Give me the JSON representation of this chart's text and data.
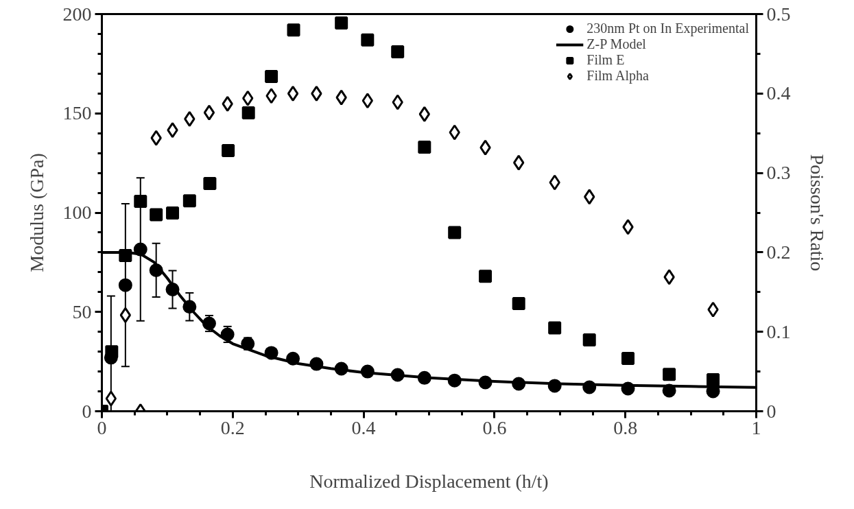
{
  "chart_data": {
    "type": "scatter",
    "xlabel": "Normalized Displacement (h/t)",
    "ylabel": "Modulus (GPa)",
    "y2label": "Poisson's Ratio",
    "xlim": [
      0,
      1
    ],
    "xticks": [
      0,
      0.2,
      0.4,
      0.6,
      0.8,
      1
    ],
    "ylim": [
      0,
      200
    ],
    "yticks": [
      0,
      50,
      100,
      150,
      200
    ],
    "y2lim": [
      0,
      0.5
    ],
    "y2ticks": [
      0,
      0.1,
      0.2,
      0.3,
      0.4,
      0.5
    ],
    "grid": false,
    "legend": "top right",
    "series": [
      {
        "name": "230nm Pt on In Experimental",
        "marker": "circle",
        "color": "#000000",
        "x": [
          0.014,
          0.036,
          0.059,
          0.083,
          0.108,
          0.134,
          0.164,
          0.192,
          0.223,
          0.259,
          0.292,
          0.328,
          0.366,
          0.406,
          0.452,
          0.493,
          0.539,
          0.586,
          0.637,
          0.692,
          0.745,
          0.804,
          0.867,
          0.934
        ],
        "values": [
          27,
          63.5,
          81.5,
          71,
          61.3,
          52.6,
          44.2,
          38.7,
          34,
          29.4,
          26.5,
          23.8,
          21.4,
          20,
          18.3,
          16.8,
          15.5,
          14.5,
          13.8,
          12.8,
          12.1,
          11.4,
          10.4,
          10.0
        ],
        "errors": [
          [
            0,
            58
          ],
          41,
          36,
          13.5,
          9.5,
          7,
          4,
          4,
          3,
          2,
          2,
          null,
          null,
          null,
          null,
          null,
          null,
          null,
          null,
          null,
          null,
          null,
          null,
          null
        ]
      },
      {
        "name": "Z-P Model",
        "type": "line",
        "marker": "none",
        "line_style": "solid",
        "color": "#000000",
        "x": [
          0,
          0.04,
          0.06,
          0.08,
          0.1,
          0.12,
          0.14,
          0.16,
          0.18,
          0.2,
          0.25,
          0.3,
          0.35,
          0.4,
          0.5,
          0.6,
          0.7,
          0.8,
          0.9,
          1.0
        ],
        "values": [
          80,
          80,
          79,
          75,
          67,
          58,
          50,
          43,
          38,
          34,
          28,
          24,
          21.5,
          19.5,
          16.8,
          15,
          13.8,
          13,
          12.5,
          12
        ]
      },
      {
        "name": "Film E",
        "marker": "square",
        "color": "#000000",
        "x": [
          0,
          0.015,
          0.036,
          0.059,
          0.083,
          0.108,
          0.134,
          0.165,
          0.193,
          0.224,
          0.259,
          0.293,
          0.366,
          0.406,
          0.452,
          0.493,
          0.539,
          0.586,
          0.637,
          0.692,
          0.745,
          0.804,
          0.867,
          0.934
        ],
        "values": [
          0,
          30,
          78.4,
          105.7,
          99,
          99.8,
          106,
          114.7,
          131.3,
          150.3,
          168.6,
          192,
          195.5,
          187,
          181,
          133,
          90,
          68,
          54.2,
          42,
          35.9,
          26.6,
          18.6,
          15.9
        ]
      },
      {
        "name": "Film Alpha",
        "marker": "diamond",
        "axis": "y2",
        "color": "#000000",
        "x": [
          0.014,
          0.036,
          0.059,
          0.083,
          0.108,
          0.134,
          0.164,
          0.192,
          0.223,
          0.259,
          0.292,
          0.328,
          0.366,
          0.406,
          0.452,
          0.493,
          0.539,
          0.586,
          0.637,
          0.692,
          0.745,
          0.804,
          0.867,
          0.934
        ],
        "values": [
          0.016,
          0.121,
          0,
          0.344,
          0.354,
          0.368,
          0.376,
          0.387,
          0.394,
          0.397,
          0.4,
          0.4,
          0.395,
          0.391,
          0.389,
          0.374,
          0.351,
          0.332,
          0.313,
          0.288,
          0.27,
          0.232,
          0.169,
          0.128
        ]
      }
    ]
  }
}
